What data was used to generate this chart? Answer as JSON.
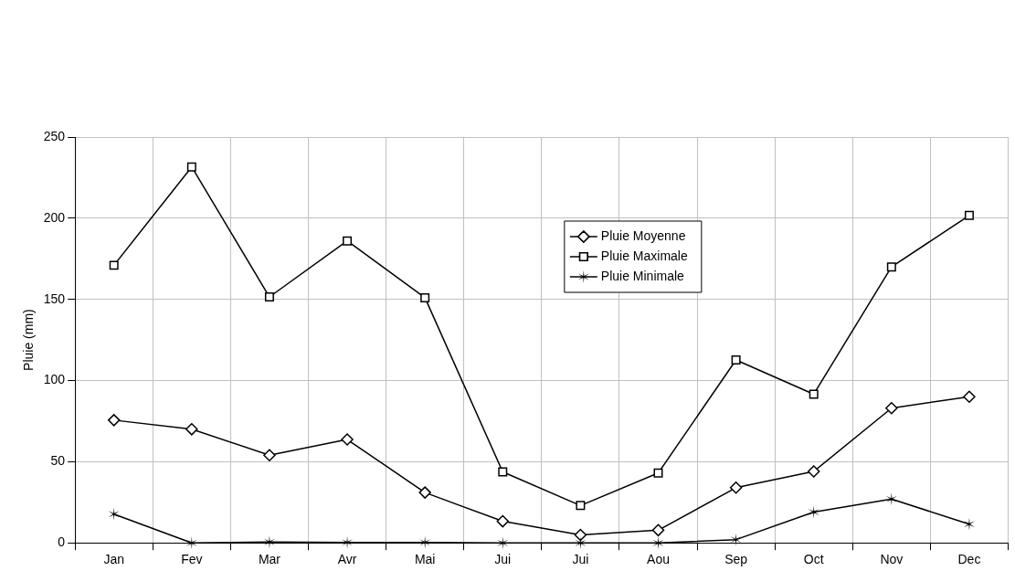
{
  "chart_data": {
    "type": "line",
    "ylabel": "Pluie (mm)",
    "categories": [
      "Jan",
      "Fev",
      "Mar",
      "Avr",
      "Mai",
      "Jui",
      "Jui",
      "Aou",
      "Sep",
      "Oct",
      "Nov",
      "Dec"
    ],
    "series": [
      {
        "name": "Pluie Moyenne",
        "color": "#000000",
        "marker": "diamond",
        "values": [
          75.6,
          70,
          54,
          63.7,
          31,
          13.3,
          4.9,
          7.8,
          34,
          44,
          83,
          90
        ]
      },
      {
        "name": "Pluie Maximale",
        "color": "#000000",
        "marker": "square",
        "values": [
          171,
          231.6,
          151.5,
          186,
          151,
          43.7,
          23,
          43,
          112.7,
          91.6,
          170,
          201.7
        ]
      },
      {
        "name": "Pluie Minimale",
        "color": "#000000",
        "marker": "cross",
        "values": [
          17.7,
          0,
          0.5,
          0.3,
          0.3,
          0,
          0,
          0,
          2,
          19,
          27,
          11.5
        ]
      }
    ],
    "ylim": [
      0,
      250
    ],
    "yticks": [
      0,
      50,
      100,
      150,
      200,
      250
    ],
    "grid": true,
    "legend": "top",
    "line_style": "solid"
  }
}
